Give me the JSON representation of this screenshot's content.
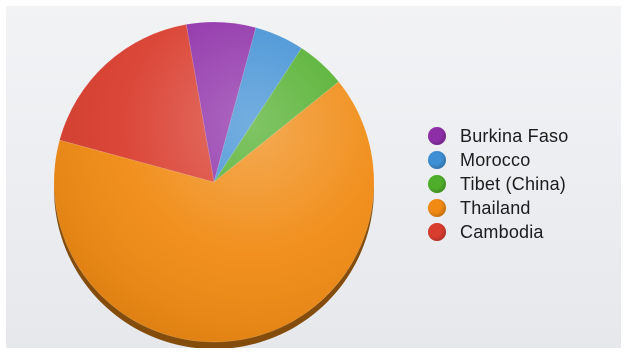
{
  "chart_data": {
    "type": "pie",
    "title": "",
    "legend_position": "right",
    "slices": [
      {
        "label": "Burkina Faso",
        "value": 7,
        "color": "#8e2fa8"
      },
      {
        "label": "Morocco",
        "value": 5,
        "color": "#3f8fd4"
      },
      {
        "label": "Tibet (China)",
        "value": 5,
        "color": "#4fae2a"
      },
      {
        "label": "Thailand",
        "value": 65,
        "color": "#f08a12"
      },
      {
        "label": "Cambodia",
        "value": 18,
        "color": "#d93d2e"
      }
    ]
  }
}
